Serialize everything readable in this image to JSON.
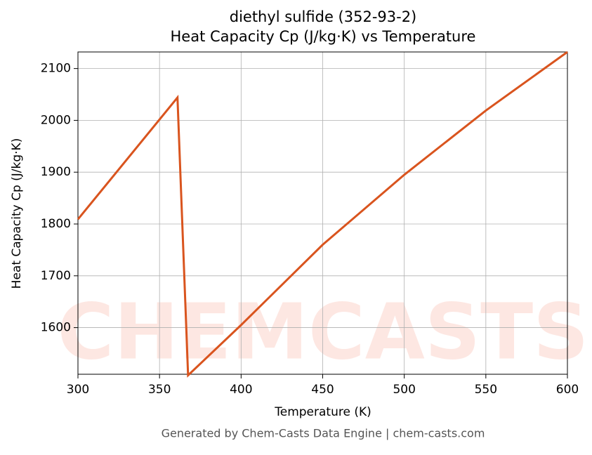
{
  "chart_data": {
    "type": "line",
    "title": "diethyl sulfide (352-93-2)",
    "subtitle": "Heat Capacity Cp (J/kg·K) vs Temperature",
    "x_label": "Temperature (K)",
    "y_label": "Heat Capacity Cp (J/kg·K)",
    "footer": "Generated by Chem-Casts Data Engine | chem-casts.com",
    "watermark": "CHEMCASTS",
    "x": [
      300,
      361,
      367.5,
      400,
      450,
      500,
      550,
      600
    ],
    "series": [
      {
        "name": "Cp",
        "color": "#d9541e",
        "values": [
          1809,
          2044,
          1508,
          1605,
          1760,
          1895,
          2019,
          2132
        ]
      }
    ],
    "xlim": [
      300,
      600
    ],
    "ylim": [
      1510,
      2132
    ],
    "xticks": [
      300,
      350,
      400,
      450,
      500,
      550,
      600
    ],
    "yticks": [
      1600,
      1700,
      1800,
      1900,
      2000,
      2100
    ],
    "grid": true
  }
}
